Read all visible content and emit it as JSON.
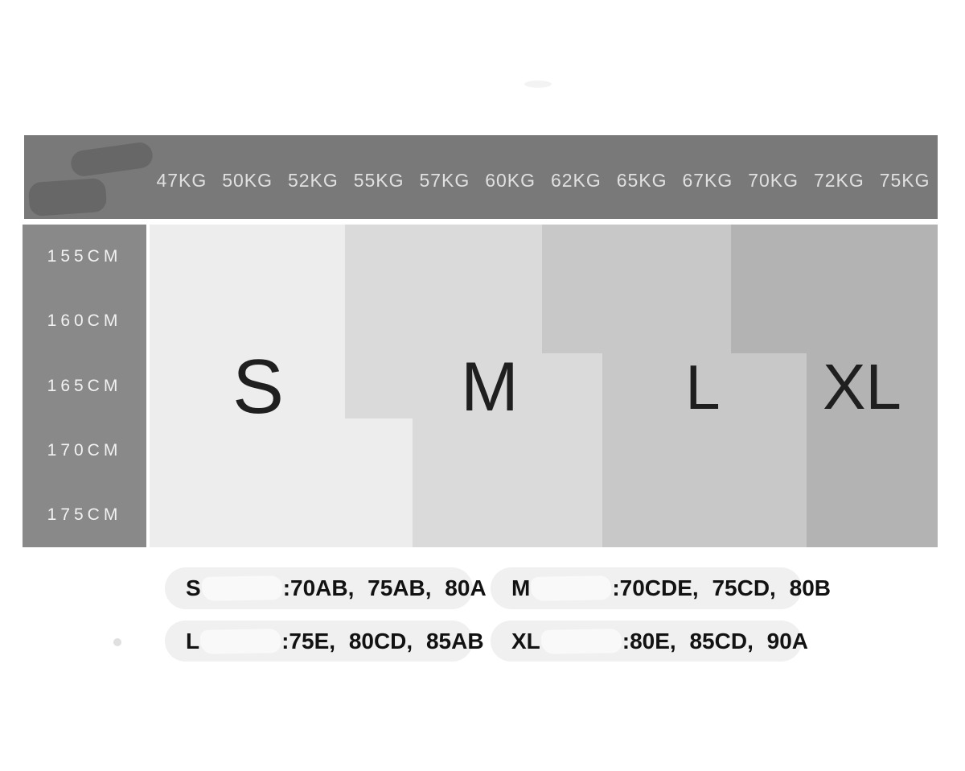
{
  "colors": {
    "page_bg": "#ffffff",
    "header_bg": "#797979",
    "header_text": "#e0e0e0",
    "logo_censor": "#676767",
    "height_axis_bg": "#898989",
    "height_axis_text": "#f2f2f2",
    "size_letter_text": "#1f1f1f",
    "pill_bg": "#f0f0f0",
    "pill_text": "#121212",
    "pill_censor": "#f9f9f9",
    "stray_dot": "#e0e0e0",
    "top_smudge": "#f3f3f3"
  },
  "header": {
    "weights": [
      "47KG",
      "50KG",
      "52KG",
      "55KG",
      "57KG",
      "60KG",
      "62KG",
      "65KG",
      "67KG",
      "70KG",
      "72KG",
      "75KG"
    ]
  },
  "height_axis": {
    "labels": [
      "155CM",
      "160CM",
      "165CM",
      "170CM",
      "175CM"
    ]
  },
  "sizes": [
    {
      "label": "S",
      "color": "#ededed"
    },
    {
      "label": "M",
      "color": "#dadada"
    },
    {
      "label": "L",
      "color": "#c8c8c8"
    },
    {
      "label": "XL",
      "color": "#b3b3b3"
    }
  ],
  "notes": [
    {
      "size": "S",
      "cups": ":70AB, 75AB, 80A"
    },
    {
      "size": "M",
      "cups": ":70CDE, 75CD, 80B"
    },
    {
      "size": "L",
      "cups": ":75E, 80CD, 85AB"
    },
    {
      "size": "XL",
      "cups": ":80E, 85CD, 90A"
    }
  ],
  "chart_data": {
    "type": "heatmap",
    "title": "Bra size chart by height and weight",
    "x_labels": [
      "47KG",
      "50KG",
      "52KG",
      "55KG",
      "57KG",
      "60KG",
      "62KG",
      "65KG",
      "67KG",
      "70KG",
      "72KG",
      "75KG"
    ],
    "y_labels": [
      "155CM",
      "160CM",
      "165CM",
      "170CM",
      "175CM"
    ],
    "legend": [
      "S",
      "M",
      "L",
      "XL"
    ],
    "matrix": [
      [
        "S",
        "S",
        "S",
        "M",
        "M",
        "M",
        "L",
        "L",
        "L",
        "XL",
        "XL",
        "XL"
      ],
      [
        "S",
        "S",
        "S",
        "M",
        "M",
        "M",
        "L",
        "L",
        "L",
        "XL",
        "XL",
        "XL"
      ],
      [
        "S",
        "S",
        "S",
        "M",
        "M",
        "M",
        "M",
        "L",
        "L",
        "L",
        "XL",
        "XL"
      ],
      [
        "S",
        "S",
        "S",
        "S",
        "M",
        "M",
        "M",
        "L",
        "L",
        "L",
        "XL",
        "XL"
      ],
      [
        "S",
        "S",
        "S",
        "S",
        "M",
        "M",
        "M",
        "L",
        "L",
        "L",
        "XL",
        "XL"
      ]
    ]
  }
}
